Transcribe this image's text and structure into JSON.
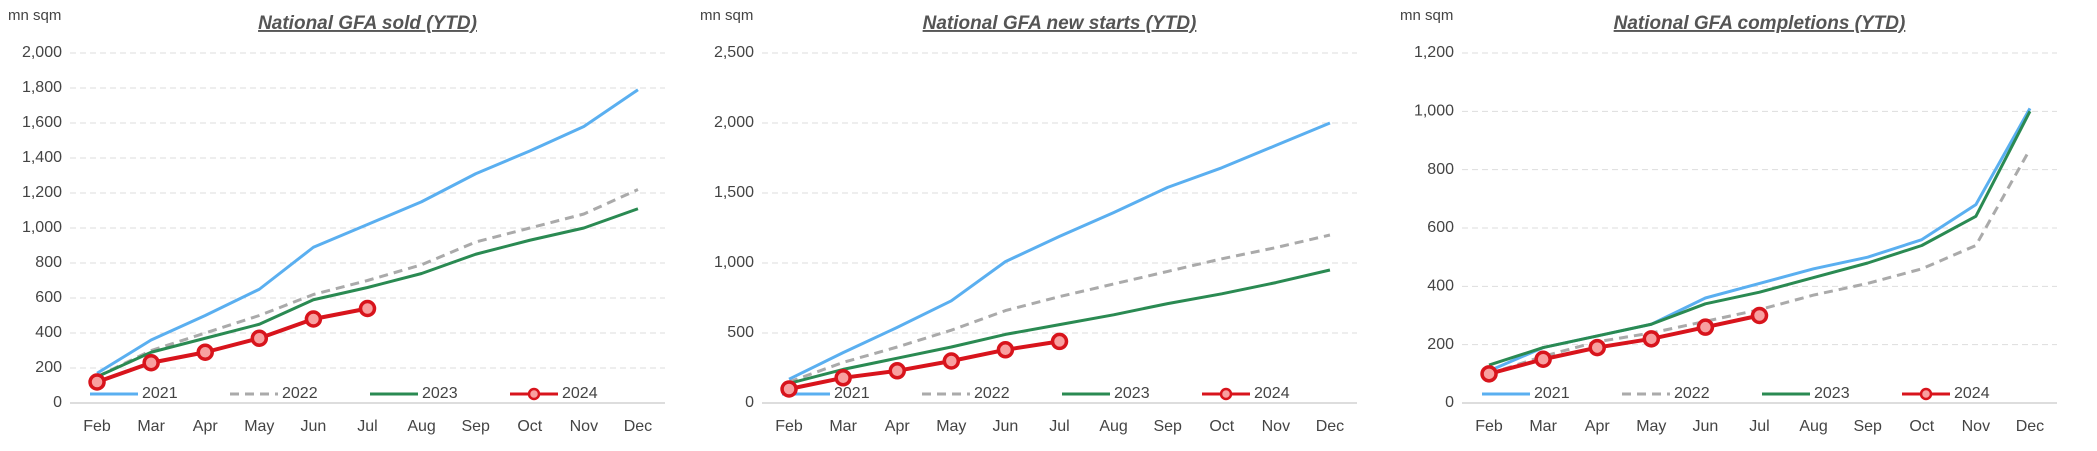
{
  "chart_data": [
    {
      "type": "line",
      "title": "National GFA sold (YTD)",
      "ylabel": "mn sqm",
      "categories": [
        "Feb",
        "Mar",
        "Apr",
        "May",
        "Jun",
        "Jul",
        "Aug",
        "Sep",
        "Oct",
        "Nov",
        "Dec"
      ],
      "series": [
        {
          "name": "2021",
          "color": "#5aaff0",
          "values": [
            170,
            360,
            500,
            650,
            890,
            1020,
            1150,
            1310,
            1440,
            1580,
            1790
          ]
        },
        {
          "name": "2022",
          "color": "#aaaaaa",
          "dashed": true,
          "values": [
            150,
            300,
            400,
            500,
            620,
            700,
            790,
            920,
            1000,
            1080,
            1220
          ]
        },
        {
          "name": "2023",
          "color": "#2a8a52",
          "values": [
            150,
            290,
            370,
            450,
            590,
            660,
            740,
            850,
            930,
            1000,
            1110
          ]
        },
        {
          "name": "2024",
          "color": "#d8141c",
          "marker": true,
          "values": [
            120,
            230,
            290,
            370,
            480,
            540,
            null,
            null,
            null,
            null,
            null
          ]
        }
      ],
      "ylim": [
        0,
        2000
      ],
      "yticks": [
        0,
        200,
        400,
        600,
        800,
        {
          "value": 1000,
          "label": "1,000"
        },
        {
          "value": 1200,
          "label": "1,200"
        },
        {
          "value": 1400,
          "label": "1,400"
        },
        {
          "value": 1600,
          "label": "1,600"
        },
        {
          "value": 1800,
          "label": "1,800"
        },
        {
          "value": 2000,
          "label": "2,000"
        }
      ],
      "grid": true,
      "legend": "bottom"
    },
    {
      "type": "line",
      "title": "National GFA new starts (YTD)",
      "ylabel": "mn sqm",
      "categories": [
        "Feb",
        "Mar",
        "Apr",
        "May",
        "Jun",
        "Jul",
        "Aug",
        "Sep",
        "Oct",
        "Nov",
        "Dec"
      ],
      "series": [
        {
          "name": "2021",
          "color": "#5aaff0",
          "values": [
            170,
            360,
            540,
            730,
            1010,
            1190,
            1360,
            1540,
            1680,
            1840,
            2000
          ]
        },
        {
          "name": "2022",
          "color": "#aaaaaa",
          "dashed": true,
          "values": [
            150,
            290,
            400,
            520,
            660,
            760,
            850,
            940,
            1030,
            1110,
            1200
          ]
        },
        {
          "name": "2023",
          "color": "#2a8a52",
          "values": [
            140,
            240,
            320,
            400,
            490,
            560,
            630,
            710,
            780,
            860,
            950
          ]
        },
        {
          "name": "2024",
          "color": "#d8141c",
          "marker": true,
          "values": [
            100,
            180,
            230,
            300,
            380,
            440,
            null,
            null,
            null,
            null,
            null
          ]
        }
      ],
      "ylim": [
        0,
        2500
      ],
      "yticks": [
        0,
        500,
        {
          "value": 1000,
          "label": "1,000"
        },
        {
          "value": 1500,
          "label": "1,500"
        },
        {
          "value": 2000,
          "label": "2,000"
        },
        {
          "value": 2500,
          "label": "2,500"
        }
      ],
      "grid": true,
      "legend": "bottom"
    },
    {
      "type": "line",
      "title": "National GFA completions (YTD)",
      "ylabel": "mn sqm",
      "categories": [
        "Feb",
        "Mar",
        "Apr",
        "May",
        "Jun",
        "Jul",
        "Aug",
        "Sep",
        "Oct",
        "Nov",
        "Dec"
      ],
      "series": [
        {
          "name": "2021",
          "color": "#5aaff0",
          "values": [
            110,
            190,
            230,
            270,
            360,
            410,
            460,
            500,
            560,
            680,
            1010
          ]
        },
        {
          "name": "2022",
          "color": "#aaaaaa",
          "dashed": true,
          "values": [
            100,
            160,
            210,
            240,
            280,
            320,
            370,
            410,
            460,
            540,
            870
          ]
        },
        {
          "name": "2023",
          "color": "#2a8a52",
          "values": [
            130,
            190,
            230,
            270,
            340,
            380,
            430,
            480,
            540,
            640,
            1000
          ]
        },
        {
          "name": "2024",
          "color": "#d8141c",
          "marker": true,
          "values": [
            100,
            150,
            190,
            220,
            260,
            300,
            null,
            null,
            null,
            null,
            null
          ]
        }
      ],
      "ylim": [
        0,
        1200
      ],
      "yticks": [
        0,
        200,
        400,
        600,
        800,
        {
          "value": 1000,
          "label": "1,000"
        },
        {
          "value": 1200,
          "label": "1,200"
        }
      ],
      "grid": true,
      "legend": "bottom"
    }
  ]
}
